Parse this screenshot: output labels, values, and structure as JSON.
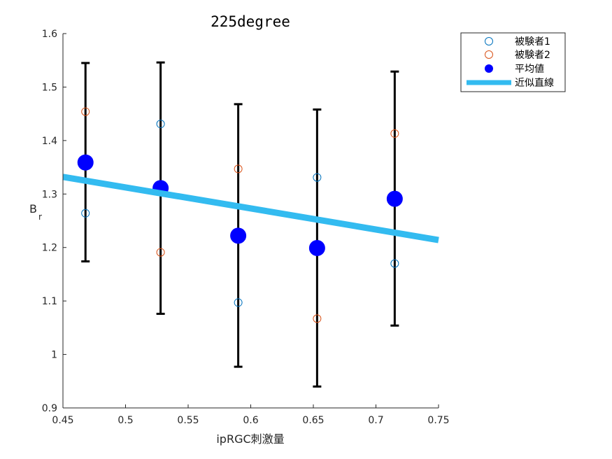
{
  "chart_data": {
    "type": "scatter",
    "title": "225degree",
    "xlabel": "ipRGC刺激量",
    "ylabel": "B",
    "ylabel_sub": "r",
    "xlim": [
      0.45,
      0.75
    ],
    "ylim": [
      0.9,
      1.6
    ],
    "xticks": [
      0.45,
      0.5,
      0.55,
      0.6,
      0.65,
      0.7,
      0.75
    ],
    "yticks": [
      0.9,
      1.0,
      1.1,
      1.2,
      1.3,
      1.4,
      1.5,
      1.6
    ],
    "xtick_labels": [
      "0.45",
      "0.5",
      "0.55",
      "0.6",
      "0.65",
      "0.7",
      "0.75"
    ],
    "ytick_labels": [
      "0.9",
      "1",
      "1.1",
      "1.2",
      "1.3",
      "1.4",
      "1.5",
      "1.6"
    ],
    "grid": false,
    "legend_position": "top-right-outside",
    "series": [
      {
        "name": "被験者1",
        "marker": "open-circle",
        "color": "#0072BD",
        "x": [
          0.468,
          0.528,
          0.59,
          0.653,
          0.715
        ],
        "y": [
          1.264,
          1.431,
          1.097,
          1.331,
          1.17
        ]
      },
      {
        "name": "被験者2",
        "marker": "open-circle",
        "color": "#D95319",
        "x": [
          0.468,
          0.528,
          0.59,
          0.653,
          0.715
        ],
        "y": [
          1.454,
          1.191,
          1.347,
          1.067,
          1.413
        ]
      },
      {
        "name": "平均値",
        "marker": "filled-circle",
        "color": "#0000FF",
        "x": [
          0.468,
          0.528,
          0.59,
          0.653,
          0.715
        ],
        "y": [
          1.359,
          1.311,
          1.222,
          1.199,
          1.291
        ],
        "error_low": [
          1.174,
          1.076,
          0.977,
          0.94,
          1.054
        ],
        "error_high": [
          1.545,
          1.546,
          1.468,
          1.458,
          1.529
        ],
        "error_color": "#000000"
      },
      {
        "name": "近似直線",
        "marker": "line",
        "color": "#33BBF0",
        "x": [
          0.45,
          0.75
        ],
        "y": [
          1.332,
          1.214
        ]
      }
    ]
  }
}
